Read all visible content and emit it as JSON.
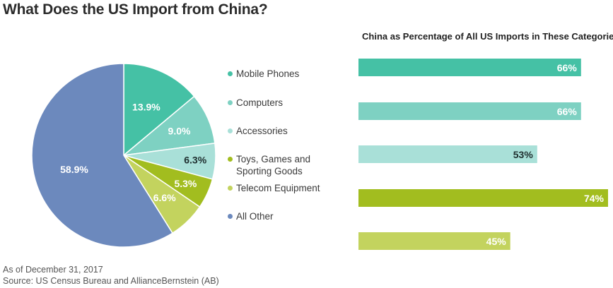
{
  "title": "What Does the US Import from China?",
  "bar_title": "China as Percentage of All US Imports in These Categories",
  "footer": {
    "as_of": "As of December 31, 2017",
    "source": "Source: US Census Bureau and AllianceBernstein (AB)"
  },
  "chart_data": [
    {
      "type": "pie",
      "categories": [
        "Mobile Phones",
        "Computers",
        "Accessories",
        "Toys, Games and Sporting Goods",
        "Telecom Equipment",
        "All Other"
      ],
      "values": [
        13.9,
        9.0,
        6.3,
        5.3,
        6.6,
        58.9
      ],
      "labels": [
        "13.9%",
        "9.0%",
        "6.3%",
        "5.3%",
        "6.6%",
        "58.9%"
      ],
      "colors": [
        "#45c1a5",
        "#7ed1c2",
        "#a9e0d8",
        "#a2bd1f",
        "#c3d35e",
        "#6c89bd"
      ],
      "legend": {
        "position": "right",
        "items": [
          {
            "label": "Mobile Phones",
            "color": "#45c1a5"
          },
          {
            "label": "Computers",
            "color": "#7ed1c2"
          },
          {
            "label": "Accessories",
            "color": "#a9e0d8"
          },
          {
            "label": "Toys, Games and\nSporting Goods",
            "color": "#a2bd1f"
          },
          {
            "label": "Telecom Equipment",
            "color": "#c3d35e"
          },
          {
            "label": "All Other",
            "color": "#6c89bd"
          }
        ]
      }
    },
    {
      "type": "bar",
      "orientation": "horizontal",
      "title": "China as Percentage of All US Imports in These Categories",
      "categories": [
        "Mobile Phones",
        "Computers",
        "Accessories",
        "Toys, Games and Sporting Goods",
        "Telecom Equipment"
      ],
      "values": [
        66,
        66,
        53,
        74,
        45
      ],
      "labels": [
        "66%",
        "66%",
        "53%",
        "74%",
        "45%"
      ],
      "colors": [
        "#45c1a5",
        "#7ed1c2",
        "#a9e0d8",
        "#a2bd1f",
        "#c3d35e"
      ],
      "xlim": [
        0,
        74
      ],
      "grid": false
    }
  ]
}
